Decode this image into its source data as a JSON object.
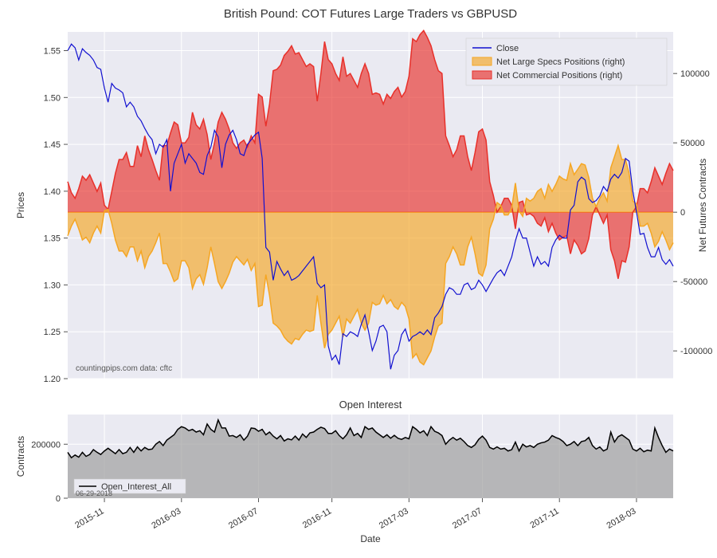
{
  "title": "British Pound: COT Futures Large Traders vs GBPUSD",
  "subtitle": "Open Interest",
  "credit": "countingpips.com    data: cftc",
  "date_stamp": "06-29-2018",
  "x_axis": {
    "label": "Date",
    "ticks": [
      "2015-11",
      "2016-03",
      "2016-07",
      "2016-11",
      "2017-03",
      "2017-07",
      "2017-11",
      "2018-03"
    ]
  },
  "main_chart": {
    "type": "line_and_area_dual_axis",
    "background": "#eaeaf2",
    "grid_color": "#ffffff",
    "y_left": {
      "label": "Prices",
      "min": 1.2,
      "max": 1.57,
      "ticks": [
        1.2,
        1.25,
        1.3,
        1.35,
        1.4,
        1.45,
        1.5,
        1.55
      ]
    },
    "y_right": {
      "label": "Net Futures Contracts",
      "min": -120000,
      "max": 130000,
      "ticks": [
        -100000,
        -50000,
        0,
        50000,
        100000
      ],
      "zero_line_color": "#ff8800"
    },
    "legend": {
      "items": [
        {
          "label": "Close",
          "type": "line",
          "color": "#1110d0"
        },
        {
          "label": "Net Large Specs Positions (right)",
          "type": "area",
          "color": "#f5a623",
          "fill": "#f5a623",
          "opacity": 0.65
        },
        {
          "label": "Net Commercial Positions (right)",
          "type": "area",
          "color": "#e8302a",
          "fill": "#e8302a",
          "opacity": 0.65
        }
      ]
    },
    "series": {
      "close": {
        "color": "#1110d0",
        "width": 1.2,
        "values": [
          1.55,
          1.557,
          1.553,
          1.54,
          1.552,
          1.548,
          1.545,
          1.54,
          1.532,
          1.53,
          1.51,
          1.495,
          1.515,
          1.51,
          1.508,
          1.505,
          1.49,
          1.495,
          1.49,
          1.48,
          1.475,
          1.467,
          1.46,
          1.455,
          1.44,
          1.45,
          1.447,
          1.455,
          1.4,
          1.43,
          1.44,
          1.45,
          1.43,
          1.44,
          1.435,
          1.43,
          1.42,
          1.418,
          1.438,
          1.447,
          1.465,
          1.458,
          1.425,
          1.45,
          1.46,
          1.465,
          1.455,
          1.44,
          1.438,
          1.45,
          1.455,
          1.46,
          1.463,
          1.435,
          1.34,
          1.335,
          1.305,
          1.325,
          1.317,
          1.31,
          1.315,
          1.305,
          1.307,
          1.31,
          1.315,
          1.32,
          1.325,
          1.33,
          1.302,
          1.297,
          1.3,
          1.235,
          1.22,
          1.225,
          1.215,
          1.248,
          1.245,
          1.25,
          1.248,
          1.245,
          1.258,
          1.268,
          1.25,
          1.23,
          1.24,
          1.255,
          1.257,
          1.25,
          1.21,
          1.225,
          1.23,
          1.247,
          1.253,
          1.24,
          1.245,
          1.247,
          1.25,
          1.247,
          1.252,
          1.247,
          1.265,
          1.27,
          1.277,
          1.29,
          1.297,
          1.295,
          1.29,
          1.29,
          1.3,
          1.302,
          1.295,
          1.297,
          1.305,
          1.3,
          1.293,
          1.3,
          1.307,
          1.313,
          1.316,
          1.31,
          1.32,
          1.33,
          1.347,
          1.36,
          1.35,
          1.35,
          1.335,
          1.32,
          1.33,
          1.322,
          1.325,
          1.32,
          1.34,
          1.348,
          1.353,
          1.35,
          1.35,
          1.38,
          1.385,
          1.41,
          1.415,
          1.412,
          1.392,
          1.388,
          1.39,
          1.395,
          1.405,
          1.4,
          1.413,
          1.418,
          1.414,
          1.42,
          1.435,
          1.432,
          1.4,
          1.378,
          1.354,
          1.355,
          1.34,
          1.33,
          1.33,
          1.34,
          1.327,
          1.322,
          1.327,
          1.32
        ]
      },
      "large_specs": {
        "color": "#f5a623",
        "fill": "#f5a623",
        "opacity": 0.65,
        "width": 1.5,
        "values": [
          -17000,
          -10000,
          -5000,
          -12000,
          -20000,
          -18000,
          -22000,
          -15000,
          -10000,
          -15000,
          1000,
          2000,
          -8000,
          -20000,
          -28000,
          -28000,
          -32000,
          -25000,
          -25000,
          -35000,
          -28000,
          -40000,
          -32000,
          -28000,
          -22000,
          -15000,
          -37000,
          -37000,
          -43000,
          -50000,
          -48000,
          -35000,
          -35000,
          -40000,
          -55000,
          -48000,
          -45000,
          -52000,
          -40000,
          -25000,
          -37000,
          -50000,
          -55000,
          -50000,
          -44000,
          -36000,
          -32000,
          -35000,
          -38000,
          -34000,
          -42000,
          -37000,
          -68000,
          -67000,
          -45000,
          -60000,
          -80000,
          -82000,
          -85000,
          -90000,
          -93000,
          -95000,
          -91000,
          -92000,
          -88000,
          -85000,
          -86000,
          -85000,
          -60000,
          -80000,
          -98000,
          -88000,
          -85000,
          -80000,
          -75000,
          -90000,
          -77000,
          -80000,
          -75000,
          -70000,
          -80000,
          -85000,
          -80000,
          -65000,
          -67000,
          -66000,
          -60000,
          -66000,
          -63000,
          -68000,
          -70000,
          -65000,
          -68000,
          -77000,
          -105000,
          -102000,
          -108000,
          -110000,
          -105000,
          -100000,
          -90000,
          -82000,
          -80000,
          -37000,
          -32000,
          -25000,
          -30000,
          -38000,
          -38000,
          -25000,
          -18000,
          -30000,
          -44000,
          -46000,
          -38000,
          -12000,
          -5000,
          7000,
          5000,
          -2000,
          -2000,
          3000,
          21000,
          1000,
          -3000,
          10000,
          8000,
          10000,
          15000,
          17000,
          10000,
          20000,
          15000,
          20000,
          26000,
          24000,
          23000,
          35000,
          27000,
          31000,
          35000,
          34000,
          25000,
          10000,
          4000,
          10000,
          14000,
          8000,
          32000,
          40000,
          48000,
          38000,
          38000,
          28000,
          8000,
          6000,
          -10000,
          -10000,
          -8000,
          -15000,
          -25000,
          -21000,
          -14000,
          -20000,
          -27000,
          -22000
        ]
      },
      "commercial": {
        "color": "#e8302a",
        "fill": "#e8302a",
        "opacity": 0.65,
        "width": 1.5,
        "values": [
          22000,
          14000,
          10000,
          17000,
          26000,
          23000,
          27000,
          21000,
          15000,
          21000,
          5000,
          2000,
          15000,
          28000,
          38000,
          38000,
          43000,
          33000,
          33000,
          48000,
          40000,
          55000,
          45000,
          38000,
          30000,
          23000,
          48000,
          48000,
          57000,
          65000,
          63000,
          50000,
          50000,
          54000,
          72000,
          63000,
          60000,
          67000,
          56000,
          38000,
          50000,
          65000,
          72000,
          67000,
          60000,
          50000,
          46000,
          50000,
          52000,
          47000,
          55000,
          50000,
          85000,
          83000,
          62000,
          78000,
          102000,
          103000,
          106000,
          113000,
          116000,
          120000,
          114000,
          115000,
          110000,
          105000,
          107000,
          105000,
          80000,
          100000,
          123000,
          110000,
          107000,
          100000,
          95000,
          112000,
          98000,
          100000,
          95000,
          90000,
          100000,
          107000,
          100000,
          85000,
          86000,
          85000,
          78000,
          85000,
          82000,
          87000,
          90000,
          83000,
          87000,
          98000,
          125000,
          123000,
          128000,
          131000,
          126000,
          120000,
          110000,
          102000,
          100000,
          55000,
          48000,
          40000,
          45000,
          55000,
          55000,
          40000,
          30000,
          43000,
          58000,
          60000,
          52000,
          22000,
          12000,
          0,
          4000,
          10000,
          10000,
          5000,
          -12000,
          7000,
          8000,
          -2000,
          -1000,
          -3000,
          -8000,
          -10000,
          -4000,
          -14000,
          -8000,
          -15000,
          -20000,
          -18000,
          -17000,
          -30000,
          -20000,
          -24000,
          -30000,
          -28000,
          -19000,
          -2000,
          4000,
          -2000,
          -8000,
          -2000,
          -27000,
          -35000,
          -48000,
          -35000,
          -36000,
          -25000,
          0,
          4000,
          17000,
          17000,
          14000,
          22000,
          32000,
          26000,
          20000,
          28000,
          35000,
          30000
        ]
      }
    }
  },
  "sub_chart": {
    "type": "area",
    "background": "#eaeaf2",
    "grid_color": "#ffffff",
    "y": {
      "label": "Contracts",
      "min": 0,
      "max": 310000,
      "ticks": [
        0,
        200000
      ]
    },
    "legend": {
      "items": [
        {
          "label": "Open_Interest_All",
          "type": "line",
          "color": "#000000"
        }
      ]
    },
    "series": {
      "open_interest": {
        "color": "#000000",
        "fill": "#a0a0a0",
        "opacity": 0.7,
        "width": 1.5,
        "values": [
          170000,
          150000,
          160000,
          152000,
          170000,
          155000,
          162000,
          180000,
          170000,
          162000,
          175000,
          185000,
          175000,
          165000,
          180000,
          165000,
          170000,
          188000,
          170000,
          190000,
          175000,
          188000,
          180000,
          182000,
          200000,
          210000,
          195000,
          215000,
          225000,
          235000,
          255000,
          265000,
          260000,
          250000,
          255000,
          245000,
          250000,
          235000,
          275000,
          255000,
          245000,
          290000,
          260000,
          260000,
          230000,
          232000,
          225000,
          235000,
          215000,
          230000,
          260000,
          258000,
          248000,
          255000,
          235000,
          245000,
          230000,
          220000,
          232000,
          212000,
          220000,
          216000,
          230000,
          215000,
          238000,
          225000,
          242000,
          245000,
          255000,
          263000,
          258000,
          240000,
          240000,
          250000,
          232000,
          220000,
          235000,
          260000,
          232000,
          240000,
          225000,
          265000,
          255000,
          260000,
          245000,
          235000,
          225000,
          235000,
          222000,
          233000,
          222000,
          218000,
          225000,
          220000,
          265000,
          255000,
          242000,
          250000,
          232000,
          265000,
          248000,
          242000,
          232000,
          200000,
          215000,
          225000,
          215000,
          222000,
          210000,
          195000,
          188000,
          198000,
          218000,
          230000,
          215000,
          188000,
          182000,
          190000,
          182000,
          185000,
          175000,
          180000,
          208000,
          175000,
          200000,
          190000,
          195000,
          188000,
          200000,
          205000,
          208000,
          215000,
          232000,
          225000,
          220000,
          210000,
          195000,
          200000,
          210000,
          195000,
          210000,
          213000,
          225000,
          195000,
          182000,
          190000,
          175000,
          182000,
          245000,
          208000,
          228000,
          235000,
          225000,
          215000,
          182000,
          175000,
          185000,
          172000,
          178000,
          175000,
          260000,
          225000,
          195000,
          170000,
          182000,
          175000
        ]
      }
    }
  }
}
